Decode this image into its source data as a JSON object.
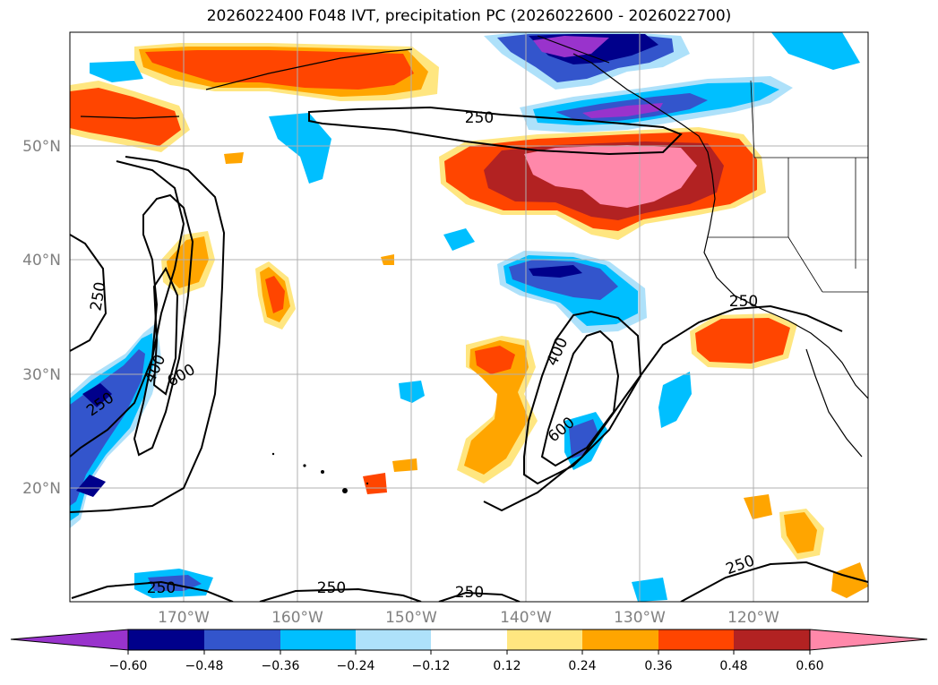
{
  "title": "2026022400 F048 IVT, precipitation PC (2026022600 - 2026022700)",
  "lat_labels": [
    "50°N",
    "40°N",
    "30°N",
    "20°N"
  ],
  "lon_labels": [
    "170°W",
    "160°W",
    "150°W",
    "140°W",
    "130°W",
    "120°W"
  ],
  "contour_labels": [
    "250",
    "250",
    "250",
    "400",
    "600",
    "250",
    "250",
    "250",
    "250",
    "400",
    "600",
    "250",
    "250"
  ],
  "colorbar": {
    "colors": [
      "#9933cc",
      "#00008b",
      "#3355cc",
      "#00bfff",
      "#aee1fa",
      "#ffffff",
      "#ffe680",
      "#ffa500",
      "#ff4500",
      "#b22222",
      "#ff88aa"
    ],
    "ticks": [
      "−0.60",
      "−0.48",
      "−0.36",
      "−0.24",
      "−0.12",
      "0.12",
      "0.24",
      "0.36",
      "0.48",
      "0.60"
    ]
  },
  "palette": {
    "violet": "#9933cc",
    "navy": "#00008b",
    "royal": "#3355cc",
    "sky": "#00bfff",
    "pale": "#aee1fa",
    "yellow": "#ffe680",
    "orange": "#ffa500",
    "red": "#ff4500",
    "brick": "#b22222",
    "pink": "#ff88aa",
    "grid": "#b0b0b0",
    "land": "#000000"
  }
}
